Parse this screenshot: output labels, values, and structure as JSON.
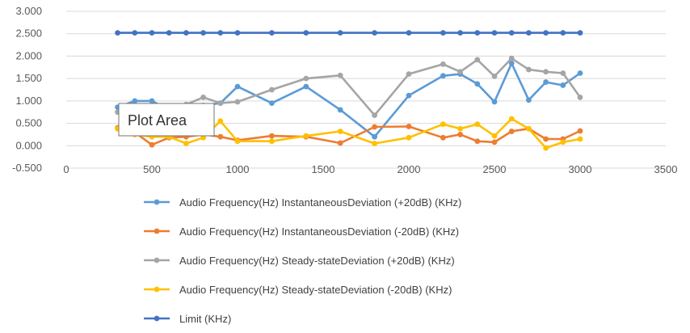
{
  "chart_data": {
    "type": "scatter",
    "title": "",
    "xlabel": "",
    "ylabel": "",
    "xlim": [
      0,
      3500
    ],
    "ylim": [
      -0.5,
      3.0
    ],
    "x_ticks": [
      0,
      500,
      1000,
      1500,
      2000,
      2500,
      3000,
      3500
    ],
    "y_ticks": [
      -0.5,
      0.0,
      0.5,
      1.0,
      1.5,
      2.0,
      2.5,
      3.0
    ],
    "x_tick_labels": [
      "0",
      "500",
      "1000",
      "1500",
      "2000",
      "2500",
      "3000",
      "3500"
    ],
    "y_tick_labels": [
      "-0.500",
      "0.000",
      "0.500",
      "1.000",
      "1.500",
      "2.000",
      "2.500",
      "3.000"
    ],
    "grid": "horizontal",
    "legend_position": "bottom",
    "series": [
      {
        "name": "Audio Frequency(Hz) InstantaneousDeviation (+20dB) (KHz)",
        "color": "#5B9BD5",
        "x": [
          300,
          400,
          500,
          600,
          700,
          800,
          900,
          1000,
          1200,
          1400,
          1600,
          1800,
          2000,
          2200,
          2300,
          2400,
          2500,
          2600,
          2700,
          2800,
          2900,
          3000
        ],
        "y": [
          0.86,
          1.0,
          1.0,
          0.8,
          0.85,
          0.9,
          0.95,
          1.32,
          0.95,
          1.32,
          0.8,
          0.2,
          1.12,
          1.56,
          1.6,
          1.38,
          0.98,
          1.84,
          1.02,
          1.42,
          1.35,
          1.62
        ]
      },
      {
        "name": "Audio Frequency(Hz) InstantaneousDeviation (-20dB) (KHz)",
        "color": "#ED7D31",
        "x": [
          300,
          400,
          500,
          600,
          700,
          800,
          900,
          1000,
          1200,
          1400,
          1600,
          1800,
          2000,
          2200,
          2300,
          2400,
          2500,
          2600,
          2700,
          2800,
          2900,
          3000
        ],
        "y": [
          0.4,
          0.3,
          0.02,
          0.18,
          0.2,
          0.25,
          0.2,
          0.12,
          0.22,
          0.2,
          0.06,
          0.42,
          0.43,
          0.18,
          0.25,
          0.1,
          0.08,
          0.32,
          0.38,
          0.15,
          0.15,
          0.33
        ]
      },
      {
        "name": "Audio Frequency(Hz) Steady-stateDeviation (+20dB) (KHz)",
        "color": "#A5A5A5",
        "x": [
          300,
          400,
          500,
          600,
          700,
          800,
          900,
          1000,
          1200,
          1400,
          1600,
          1800,
          2000,
          2200,
          2300,
          2400,
          2500,
          2600,
          2700,
          2800,
          2900,
          3000
        ],
        "y": [
          0.75,
          0.85,
          0.85,
          0.85,
          0.92,
          1.08,
          0.95,
          0.98,
          1.25,
          1.5,
          1.57,
          0.68,
          1.6,
          1.82,
          1.65,
          1.92,
          1.55,
          1.95,
          1.7,
          1.65,
          1.62,
          1.08
        ]
      },
      {
        "name": "Audio Frequency(Hz) Steady-stateDeviation (-20dB) (KHz)",
        "color": "#FFC000",
        "x": [
          300,
          400,
          500,
          600,
          700,
          800,
          900,
          1000,
          1200,
          1400,
          1600,
          1800,
          2000,
          2200,
          2300,
          2400,
          2500,
          2600,
          2700,
          2800,
          2900,
          3000
        ],
        "y": [
          0.38,
          0.25,
          0.2,
          0.2,
          0.05,
          0.18,
          0.55,
          0.1,
          0.1,
          0.22,
          0.32,
          0.05,
          0.18,
          0.48,
          0.38,
          0.48,
          0.22,
          0.6,
          0.38,
          -0.05,
          0.08,
          0.15
        ]
      },
      {
        "name": "Limit  (KHz)",
        "color": "#4472C4",
        "x": [
          300,
          400,
          500,
          600,
          700,
          800,
          900,
          1000,
          1200,
          1400,
          1600,
          1800,
          2000,
          2200,
          2300,
          2400,
          2500,
          2600,
          2700,
          2800,
          2900,
          3000
        ],
        "y": [
          2.52,
          2.52,
          2.52,
          2.52,
          2.52,
          2.52,
          2.52,
          2.52,
          2.52,
          2.52,
          2.52,
          2.52,
          2.52,
          2.52,
          2.52,
          2.52,
          2.52,
          2.52,
          2.52,
          2.52,
          2.52,
          2.52
        ]
      }
    ]
  },
  "tooltip": {
    "label": "Plot Area"
  }
}
